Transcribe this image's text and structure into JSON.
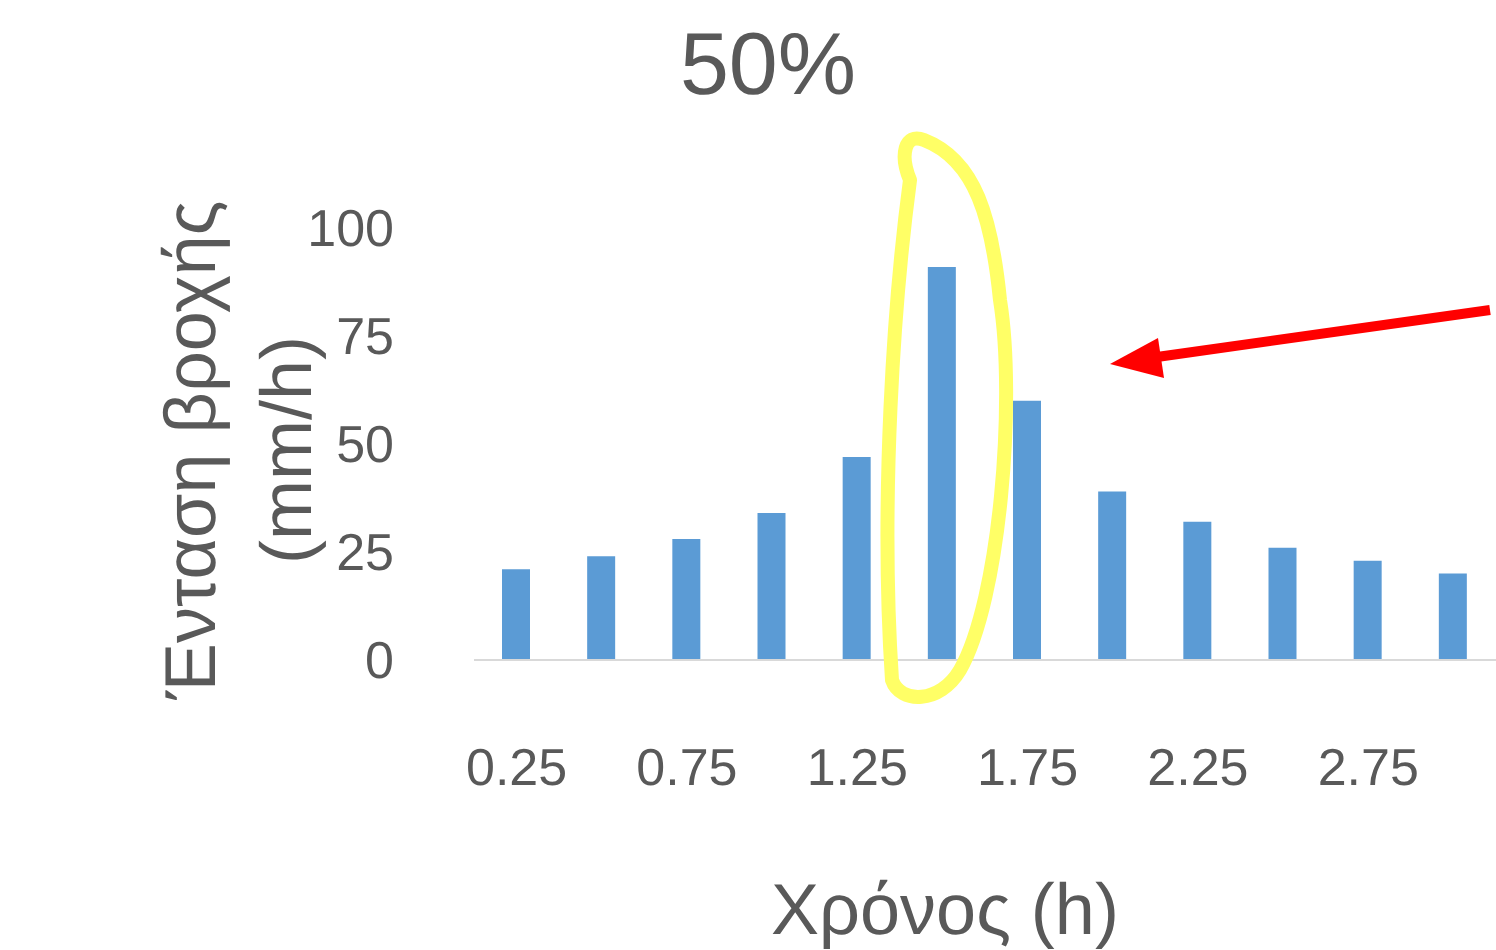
{
  "chart_data": {
    "type": "bar",
    "title": "50%",
    "xlabel": "Χρόνος (h)",
    "ylabel": "Ένταση βροχής (mm/h)",
    "categories": [
      "0.25",
      null,
      "0.75",
      null,
      "1.25",
      null,
      "1.75",
      null,
      "2.25",
      null,
      "2.75",
      null
    ],
    "values": [
      21,
      24,
      28,
      34,
      47,
      91,
      60,
      39,
      32,
      26,
      23,
      20
    ],
    "color": "#5b9bd5",
    "ylim": [
      0,
      100
    ],
    "yticks": [
      0,
      25,
      50,
      75,
      100
    ],
    "grid": false,
    "legend": false
  }
}
